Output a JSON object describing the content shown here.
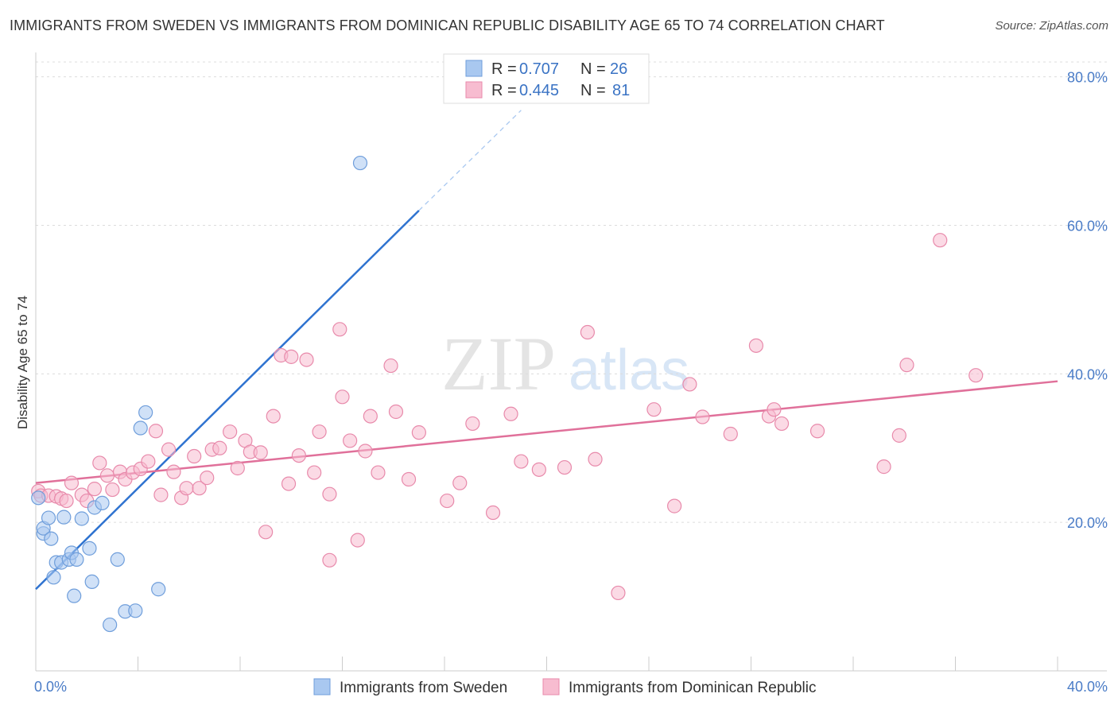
{
  "title": "IMMIGRANTS FROM SWEDEN VS IMMIGRANTS FROM DOMINICAN REPUBLIC DISABILITY AGE 65 TO 74 CORRELATION CHART",
  "source": "Source: ZipAtlas.com",
  "watermark": {
    "zip": "ZIP",
    "atlas": "atlas"
  },
  "legend_top": [
    {
      "r_label": "R =",
      "r_value": "0.707",
      "n_label": "N =",
      "n_value": "26",
      "color": "#a9c8f0",
      "stroke": "#6f9edb"
    },
    {
      "r_label": "R =",
      "r_value": "0.445",
      "n_label": "N =",
      "n_value": "81",
      "color": "#f7bcd0",
      "stroke": "#e88aab"
    }
  ],
  "chart_data": {
    "type": "scatter",
    "title": "IMMIGRANTS FROM SWEDEN VS IMMIGRANTS FROM DOMINICAN REPUBLIC DISABILITY AGE 65 TO 74 CORRELATION CHART",
    "xlabel": "",
    "ylabel": "Disability Age 65 to 74",
    "xlim": [
      0,
      40
    ],
    "ylim": [
      0,
      82
    ],
    "x_tick_labels": [
      "0.0%",
      "40.0%"
    ],
    "y_ticks": [
      20,
      40,
      60,
      80
    ],
    "y_tick_labels": [
      "20.0%",
      "40.0%",
      "60.0%",
      "80.0%"
    ],
    "grid": true,
    "legend_position": "bottom",
    "series": [
      {
        "name": "Immigrants from Sweden",
        "color": "#a9c8f0",
        "stroke": "#6f9edb",
        "line_color": "#2f73d0",
        "trend": {
          "x0": 0.0,
          "y0": 11.0,
          "x1": 15.0,
          "y1": 62.0,
          "dash_x1": 19.0,
          "dash_y1": 75.5
        },
        "points": [
          [
            0.1,
            23.3
          ],
          [
            0.3,
            18.5
          ],
          [
            0.3,
            19.2
          ],
          [
            0.5,
            20.6
          ],
          [
            0.6,
            17.8
          ],
          [
            0.7,
            12.6
          ],
          [
            0.8,
            14.6
          ],
          [
            1.0,
            14.6
          ],
          [
            1.1,
            20.7
          ],
          [
            1.3,
            15.0
          ],
          [
            1.4,
            15.9
          ],
          [
            1.5,
            10.1
          ],
          [
            1.6,
            15.0
          ],
          [
            1.8,
            20.5
          ],
          [
            2.1,
            16.5
          ],
          [
            2.2,
            12.0
          ],
          [
            2.3,
            22.0
          ],
          [
            2.6,
            22.6
          ],
          [
            2.9,
            6.2
          ],
          [
            3.2,
            15.0
          ],
          [
            3.5,
            8.0
          ],
          [
            3.9,
            8.1
          ],
          [
            4.1,
            32.7
          ],
          [
            4.3,
            34.8
          ],
          [
            4.8,
            11.0
          ],
          [
            12.7,
            68.4
          ]
        ]
      },
      {
        "name": "Immigrants from Dominican Republic",
        "color": "#f7bcd0",
        "stroke": "#e88aab",
        "line_color": "#e0709a",
        "trend": {
          "x0": 0.0,
          "y0": 25.3,
          "x1": 40.0,
          "y1": 39.0
        },
        "points": [
          [
            0.1,
            24.2
          ],
          [
            0.2,
            23.6
          ],
          [
            0.5,
            23.6
          ],
          [
            0.8,
            23.5
          ],
          [
            1.0,
            23.2
          ],
          [
            1.2,
            22.9
          ],
          [
            1.4,
            25.3
          ],
          [
            1.8,
            23.7
          ],
          [
            2.0,
            22.9
          ],
          [
            2.3,
            24.5
          ],
          [
            2.5,
            28.0
          ],
          [
            2.8,
            26.3
          ],
          [
            3.0,
            24.4
          ],
          [
            3.3,
            26.8
          ],
          [
            3.5,
            25.8
          ],
          [
            3.8,
            26.7
          ],
          [
            4.1,
            27.2
          ],
          [
            4.4,
            28.2
          ],
          [
            4.7,
            32.3
          ],
          [
            4.9,
            23.7
          ],
          [
            5.2,
            29.8
          ],
          [
            5.4,
            26.8
          ],
          [
            5.7,
            23.3
          ],
          [
            5.9,
            24.6
          ],
          [
            6.2,
            28.9
          ],
          [
            6.4,
            24.6
          ],
          [
            6.7,
            26.0
          ],
          [
            6.9,
            29.8
          ],
          [
            7.2,
            30.0
          ],
          [
            7.6,
            32.2
          ],
          [
            7.9,
            27.3
          ],
          [
            8.2,
            31.0
          ],
          [
            8.4,
            29.5
          ],
          [
            8.8,
            29.4
          ],
          [
            9.0,
            18.7
          ],
          [
            9.3,
            34.3
          ],
          [
            9.6,
            42.5
          ],
          [
            9.9,
            25.2
          ],
          [
            10.0,
            42.3
          ],
          [
            10.3,
            29.0
          ],
          [
            10.6,
            41.9
          ],
          [
            10.9,
            26.7
          ],
          [
            11.1,
            32.2
          ],
          [
            11.5,
            23.8
          ],
          [
            11.5,
            14.9
          ],
          [
            11.9,
            46.0
          ],
          [
            12.0,
            36.9
          ],
          [
            12.3,
            31.0
          ],
          [
            12.6,
            17.6
          ],
          [
            12.9,
            29.6
          ],
          [
            13.1,
            34.3
          ],
          [
            13.4,
            26.7
          ],
          [
            13.9,
            41.1
          ],
          [
            14.1,
            34.9
          ],
          [
            14.6,
            25.8
          ],
          [
            15.0,
            32.1
          ],
          [
            16.1,
            22.9
          ],
          [
            16.6,
            25.3
          ],
          [
            17.1,
            33.3
          ],
          [
            17.9,
            21.3
          ],
          [
            18.6,
            34.6
          ],
          [
            19.0,
            28.2
          ],
          [
            19.7,
            27.1
          ],
          [
            20.7,
            27.4
          ],
          [
            21.6,
            45.6
          ],
          [
            21.9,
            28.5
          ],
          [
            22.8,
            10.5
          ],
          [
            24.2,
            35.2
          ],
          [
            25.0,
            22.2
          ],
          [
            25.6,
            38.6
          ],
          [
            26.1,
            34.2
          ],
          [
            27.2,
            31.9
          ],
          [
            28.2,
            43.8
          ],
          [
            28.7,
            34.3
          ],
          [
            28.9,
            35.2
          ],
          [
            29.2,
            33.3
          ],
          [
            30.6,
            32.3
          ],
          [
            33.2,
            27.5
          ],
          [
            33.8,
            31.7
          ],
          [
            34.1,
            41.2
          ],
          [
            35.4,
            58.0
          ],
          [
            36.8,
            39.8
          ]
        ]
      }
    ]
  }
}
